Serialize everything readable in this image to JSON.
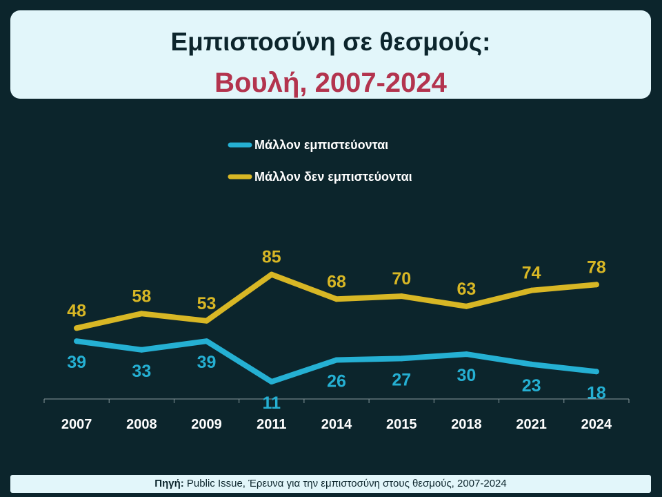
{
  "header": {
    "title_line1": "Εμπιστοσύνη σε θεσμούς:",
    "title_line2": "Βουλή, 2007-2024"
  },
  "footer": {
    "source_label": "Πηγή:",
    "source_text": " Public Issue, Έρευνα για την εμπιστοσύνη στους θεσμούς, 2007-2024"
  },
  "colors": {
    "background": "#0c252c",
    "trust": "#25b0d3",
    "distrust": "#d8b725",
    "axis_text": "#ffffff"
  },
  "chart_data": {
    "type": "line",
    "title": "Εμπιστοσύνη σε θεσμούς: Βουλή, 2007-2024",
    "categories": [
      "2007",
      "2008",
      "2009",
      "2011",
      "2014",
      "2015",
      "2018",
      "2021",
      "2024"
    ],
    "ylim": [
      0,
      100
    ],
    "grid": false,
    "legend_position": "top-center",
    "series": [
      {
        "name": "Μάλλον εμπιστεύονται",
        "color": "#25b0d3",
        "values": [
          39,
          33,
          39,
          11,
          26,
          27,
          30,
          23,
          18
        ],
        "labels": [
          "39",
          "33",
          "39",
          "11",
          "26",
          "27",
          "30",
          "23",
          "18"
        ],
        "label_position": "below"
      },
      {
        "name": "Μάλλον δεν εμπιστεύονται",
        "color": "#d8b725",
        "values": [
          48,
          58,
          53,
          85,
          68,
          70,
          63,
          74,
          78
        ],
        "labels": [
          "48",
          "58",
          "53",
          "85",
          "68",
          "70",
          "63",
          "74",
          "78"
        ],
        "label_position": "above"
      }
    ]
  }
}
